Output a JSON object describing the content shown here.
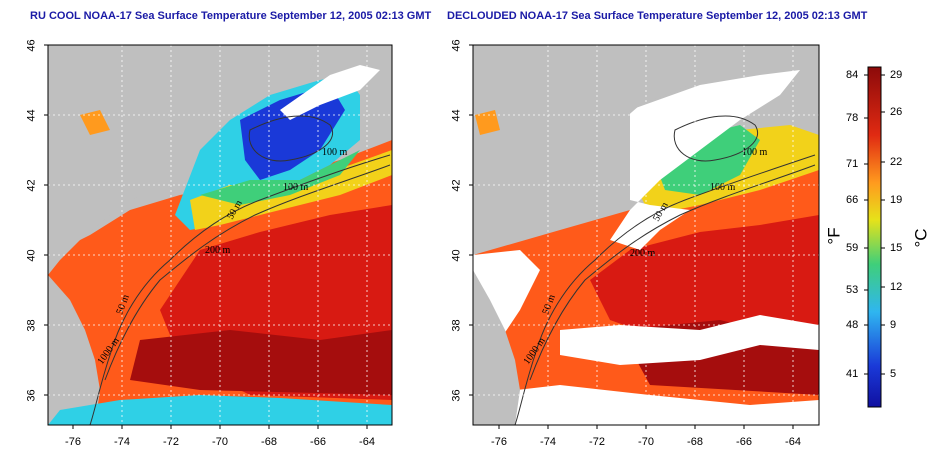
{
  "titles": {
    "left": "RU COOL NOAA-17 Sea Surface Temperature September 12, 2005 02:13 GMT",
    "right": "DECLOUDED NOAA-17 Sea Surface Temperature September 12, 2005 02:13 GMT"
  },
  "map": {
    "lat_ticks": [
      "46",
      "44",
      "42",
      "40",
      "38",
      "36"
    ],
    "lon_ticks": [
      "-76",
      "-74",
      "-72",
      "-70",
      "-68",
      "-66",
      "-64"
    ],
    "contour_labels": [
      "100 m",
      "100 m",
      "50 m",
      "200 m",
      "50 m",
      "1000 m"
    ],
    "colors": {
      "land": "#bfbfbf",
      "warm": "#d81a12",
      "hot": "#a50d0d",
      "mid": "#ff6a1e",
      "yellow": "#f2d21a",
      "green": "#3fcf7a",
      "cyan": "#2fd0e6",
      "blue": "#1a39d8",
      "cloud": "#ffffff"
    }
  },
  "colorbar": {
    "fahrenheit_ticks": [
      "84",
      "78",
      "71",
      "66",
      "59",
      "53",
      "48",
      "41"
    ],
    "celsius_ticks": [
      "29",
      "26",
      "22",
      "19",
      "15",
      "12",
      "9",
      "5"
    ],
    "fahrenheit_unit": "°F",
    "celsius_unit": "°C"
  }
}
